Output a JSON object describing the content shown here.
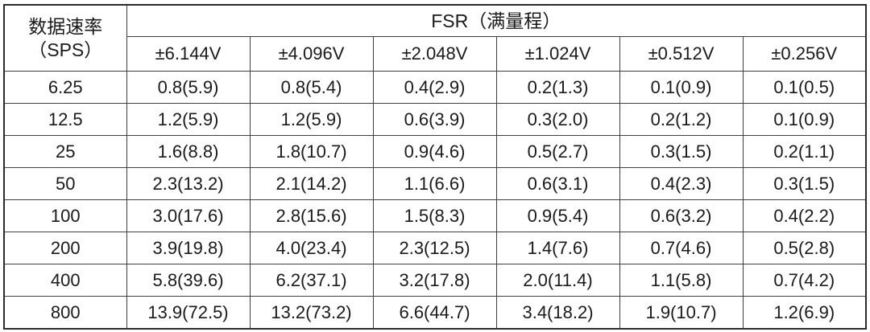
{
  "table": {
    "row_header": {
      "line1": "数据速率",
      "line2": "（SPS）"
    },
    "fsr_header": "FSR（满量程）",
    "fsr_columns": [
      "±6.144V",
      "±4.096V",
      "±2.048V",
      "±1.024V",
      "±0.512V",
      "±0.256V"
    ],
    "rows": [
      {
        "rate": "6.25",
        "values": [
          "0.8(5.9)",
          "0.8(5.4)",
          "0.4(2.9)",
          "0.2(1.3)",
          "0.1(0.9)",
          "0.1(0.5)"
        ]
      },
      {
        "rate": "12.5",
        "values": [
          "1.2(5.9)",
          "1.2(5.9)",
          "0.6(3.9)",
          "0.3(2.0)",
          "0.2(1.2)",
          "0.1(0.9)"
        ]
      },
      {
        "rate": "25",
        "values": [
          "1.6(8.8)",
          "1.8(10.7)",
          "0.9(4.6)",
          "0.5(2.7)",
          "0.3(1.5)",
          "0.2(1.1)"
        ]
      },
      {
        "rate": "50",
        "values": [
          "2.3(13.2)",
          "2.1(14.2)",
          "1.1(6.6)",
          "0.6(3.1)",
          "0.4(2.3)",
          "0.3(1.5)"
        ]
      },
      {
        "rate": "100",
        "values": [
          "3.0(17.6)",
          "2.8(15.6)",
          "1.5(8.3)",
          "0.9(5.4)",
          "0.6(3.2)",
          "0.4(2.2)"
        ]
      },
      {
        "rate": "200",
        "values": [
          "3.9(19.8)",
          "4.0(23.4)",
          "2.3(12.5)",
          "1.4(7.6)",
          "0.7(4.6)",
          "0.5(2.8)"
        ]
      },
      {
        "rate": "400",
        "values": [
          "5.8(39.6)",
          "6.2(37.1)",
          "3.2(17.8)",
          "2.0(11.4)",
          "1.1(5.8)",
          "0.7(4.2)"
        ]
      },
      {
        "rate": "800",
        "values": [
          "13.9(72.5)",
          "13.2(73.2)",
          "6.6(44.7)",
          "3.4(18.2)",
          "1.9(10.7)",
          "1.2(6.9)"
        ]
      }
    ],
    "colors": {
      "border": "#3f3f3f",
      "text": "#1a1a1a",
      "background": "#ffffff"
    }
  }
}
